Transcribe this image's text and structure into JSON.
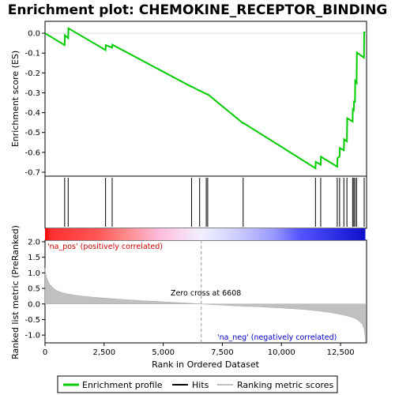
{
  "chart_data": {
    "type": "line",
    "title": "Enrichment plot: CHEMOKINE_RECEPTOR_BINDING",
    "xlabel": "Rank in Ordered Dataset",
    "ylabel_top": "Enrichment score (ES)",
    "ylabel_bottom": "Ranked list metric (PreRanked)",
    "x_ticks": [
      0,
      2500,
      5000,
      7500,
      10000,
      12500
    ],
    "x_tick_labels": [
      "0",
      "2,500",
      "5,000",
      "7,500",
      "10,000",
      "12,500"
    ],
    "xlim": [
      0,
      13600
    ],
    "es_ylim": [
      -0.72,
      0.06
    ],
    "es_ticks": [
      0.0,
      -0.1,
      -0.2,
      -0.3,
      -0.4,
      -0.5,
      -0.6,
      -0.7
    ],
    "es_tick_labels": [
      "0.0",
      "-0.1",
      "-0.2",
      "-0.3",
      "-0.4",
      "-0.5",
      "-0.6",
      "-0.7"
    ],
    "metric_ylim": [
      -1.25,
      2.05
    ],
    "metric_ticks": [
      2.0,
      1.5,
      1.0,
      0.5,
      0.0,
      -0.5,
      -1.0
    ],
    "metric_tick_labels": [
      "2.0",
      "1.5",
      "1.0",
      "0.5",
      "0.0",
      "-0.5",
      "-1.0"
    ],
    "enrichment_profile": {
      "name": "Enrichment profile",
      "color": "#00cc00",
      "x": [
        0,
        830,
        840,
        980,
        990,
        2560,
        2570,
        2840,
        2850,
        6200,
        6210,
        6540,
        6550,
        6820,
        6830,
        6880,
        6890,
        8380,
        8390,
        11440,
        11450,
        11660,
        11670,
        12360,
        12370,
        12460,
        12470,
        12640,
        12650,
        12770,
        12780,
        13010,
        13020,
        13060,
        13070,
        13110,
        13120,
        13180,
        13190,
        13490,
        13500,
        13550
      ],
      "y": [
        0.0,
        -0.06,
        -0.01,
        -0.025,
        0.025,
        -0.085,
        -0.06,
        -0.072,
        -0.058,
        -0.27,
        -0.269,
        -0.29,
        -0.289,
        -0.306,
        -0.305,
        -0.309,
        -0.308,
        -0.454,
        -0.452,
        -0.68,
        -0.648,
        -0.662,
        -0.622,
        -0.672,
        -0.63,
        -0.62,
        -0.578,
        -0.59,
        -0.534,
        -0.545,
        -0.428,
        -0.445,
        -0.383,
        -0.387,
        -0.34,
        -0.35,
        -0.24,
        -0.25,
        -0.097,
        -0.123,
        0.005,
        0.005
      ]
    },
    "hits": [
      830,
      980,
      2560,
      2840,
      6200,
      6540,
      6820,
      6880,
      8380,
      11440,
      11660,
      12360,
      12460,
      12640,
      12770,
      13010,
      13060,
      13110,
      13180,
      13500
    ],
    "ranked_metric": {
      "name": "Ranking metric scores",
      "color": "#c0c0c0",
      "x": [
        0,
        30,
        60,
        100,
        150,
        200,
        300,
        400,
        500,
        700,
        900,
        1200,
        1600,
        2000,
        2500,
        3000,
        4000,
        5000,
        6000,
        6608,
        7000,
        8000,
        9000,
        10000,
        11000,
        11500,
        12000,
        12400,
        12700,
        12900,
        13100,
        13250,
        13350,
        13420,
        13470,
        13500,
        13520,
        13540,
        13550
      ],
      "y": [
        1.15,
        0.98,
        0.88,
        0.78,
        0.7,
        0.63,
        0.55,
        0.48,
        0.43,
        0.37,
        0.33,
        0.29,
        0.25,
        0.22,
        0.19,
        0.16,
        0.11,
        0.07,
        0.03,
        0.0,
        -0.02,
        -0.06,
        -0.09,
        -0.13,
        -0.18,
        -0.22,
        -0.27,
        -0.32,
        -0.37,
        -0.41,
        -0.46,
        -0.53,
        -0.6,
        -0.66,
        -0.74,
        -0.82,
        -0.93,
        -1.1,
        -1.22
      ]
    },
    "heatmap_band": {
      "stops": [
        {
          "x": 0,
          "color": "#ff0000"
        },
        {
          "x": 250,
          "color": "#ff3030"
        },
        {
          "x": 2200,
          "color": "#ff5555"
        },
        {
          "x": 3400,
          "color": "#ff8888"
        },
        {
          "x": 4850,
          "color": "#ffbbdd"
        },
        {
          "x": 6608,
          "color": "#f2f0ff"
        },
        {
          "x": 8200,
          "color": "#ccccff"
        },
        {
          "x": 9700,
          "color": "#9999ff"
        },
        {
          "x": 10800,
          "color": "#5555ff"
        },
        {
          "x": 12800,
          "color": "#2222dd"
        },
        {
          "x": 13550,
          "color": "#1111cc"
        }
      ]
    },
    "zero_cross": 6608,
    "annotations": {
      "na_pos": "'na_pos' (positively correlated)",
      "na_neg": "'na_neg' (negatively correlated)",
      "zero_cross": "Zero cross at 6608"
    },
    "annotation_colors": {
      "na_pos": "#cc0000",
      "na_neg": "#0000cc",
      "zero_cross": "#000000"
    },
    "legend": {
      "placement": "bottom",
      "items": [
        {
          "label": "Enrichment profile",
          "color": "#00cc00"
        },
        {
          "label": "Hits",
          "color": "#000000"
        },
        {
          "label": "Ranking metric scores",
          "color": "#c0c0c0"
        }
      ]
    }
  }
}
